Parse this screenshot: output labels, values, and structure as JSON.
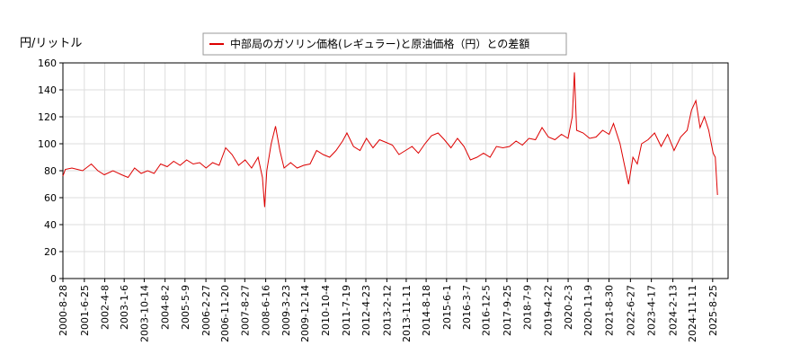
{
  "chart_data": {
    "type": "line",
    "y_label": "円/リットル",
    "legend": "top",
    "grid": true,
    "series": [
      {
        "name": "中部局のガソリン価格(レギュラー)と原油価格（円）との差額",
        "color": "#dd0000",
        "x": [
          "2000-8-28",
          "2000-10-1",
          "2001-1-1",
          "2001-6-1",
          "2001-10-1",
          "2002-1-1",
          "2002-4-1",
          "2002-8-1",
          "2002-12-1",
          "2003-3-1",
          "2003-6-1",
          "2003-9-1",
          "2003-12-1",
          "2004-3-1",
          "2004-6-1",
          "2004-9-1",
          "2004-12-1",
          "2005-3-1",
          "2005-6-1",
          "2005-9-1",
          "2005-12-1",
          "2006-3-1",
          "2006-6-1",
          "2006-9-1",
          "2006-12-1",
          "2007-3-1",
          "2007-6-1",
          "2007-9-1",
          "2007-12-1",
          "2008-3-1",
          "2008-5-1",
          "2008-6-1",
          "2008-7-1",
          "2008-9-1",
          "2008-11-1",
          "2009-1-1",
          "2009-3-1",
          "2009-6-1",
          "2009-9-1",
          "2009-12-1",
          "2010-3-1",
          "2010-6-1",
          "2010-9-1",
          "2010-12-1",
          "2011-3-1",
          "2011-6-1",
          "2011-8-1",
          "2011-11-1",
          "2012-2-1",
          "2012-5-1",
          "2012-8-1",
          "2012-11-1",
          "2013-2-1",
          "2013-5-1",
          "2013-8-1",
          "2013-11-1",
          "2014-2-1",
          "2014-5-1",
          "2014-8-1",
          "2014-11-1",
          "2015-2-1",
          "2015-5-1",
          "2015-8-1",
          "2015-11-1",
          "2016-2-1",
          "2016-5-1",
          "2016-8-1",
          "2016-11-1",
          "2017-2-1",
          "2017-5-1",
          "2017-8-1",
          "2017-11-1",
          "2018-2-1",
          "2018-5-1",
          "2018-8-1",
          "2018-11-1",
          "2019-2-1",
          "2019-5-1",
          "2019-8-1",
          "2019-11-1",
          "2020-2-1",
          "2020-4-1",
          "2020-5-1",
          "2020-6-1",
          "2020-9-1",
          "2020-12-1",
          "2021-3-1",
          "2021-6-1",
          "2021-9-1",
          "2021-11-1",
          "2022-2-1",
          "2022-4-1",
          "2022-6-1",
          "2022-8-1",
          "2022-10-1",
          "2022-12-1",
          "2023-3-1",
          "2023-6-1",
          "2023-9-1",
          "2023-12-1",
          "2024-3-1",
          "2024-6-1",
          "2024-9-1",
          "2024-11-1",
          "2025-1-1",
          "2025-3-1",
          "2025-5-1",
          "2025-7-1",
          "2025-9-1",
          "2025-10-1",
          "2025-11-1"
        ],
        "values": [
          76,
          81,
          82,
          80,
          85,
          80,
          77,
          80,
          77,
          75,
          82,
          78,
          80,
          78,
          85,
          83,
          87,
          84,
          88,
          85,
          86,
          82,
          86,
          84,
          97,
          92,
          84,
          88,
          82,
          90,
          75,
          53,
          80,
          100,
          113,
          95,
          82,
          86,
          82,
          84,
          85,
          95,
          92,
          90,
          95,
          102,
          108,
          98,
          95,
          104,
          97,
          103,
          101,
          99,
          92,
          95,
          98,
          93,
          100,
          106,
          108,
          103,
          97,
          104,
          98,
          88,
          90,
          93,
          90,
          98,
          97,
          98,
          102,
          99,
          104,
          103,
          112,
          105,
          103,
          107,
          104,
          120,
          153,
          110,
          108,
          104,
          105,
          110,
          107,
          115,
          100,
          85,
          70,
          90,
          85,
          100,
          103,
          108,
          98,
          107,
          95,
          105,
          110,
          125,
          132,
          112,
          120,
          110,
          93,
          90,
          62
        ]
      }
    ],
    "xlim": [
      "2000-8-28",
      "2026-3-30"
    ],
    "xticks": [
      "2000-8-28",
      "2001-6-25",
      "2002-4-8",
      "2003-1-6",
      "2003-10-14",
      "2004-8-2",
      "2005-5-9",
      "2006-2-27",
      "2006-11-20",
      "2007-8-27",
      "2008-6-16",
      "2009-3-23",
      "2009-12-14",
      "2010-10-4",
      "2011-7-19",
      "2012-4-23",
      "2013-2-12",
      "2013-11-11",
      "2014-8-18",
      "2015-6-1",
      "2016-3-7",
      "2016-12-5",
      "2017-9-25",
      "2018-7-9",
      "2019-4-22",
      "2020-2-3",
      "2020-11-9",
      "2021-8-30",
      "2022-6-27",
      "2023-4-17",
      "2024-2-13",
      "2024-11-11",
      "2025-8-25"
    ],
    "ylim": [
      0,
      160
    ],
    "yticks": [
      0,
      20,
      40,
      60,
      80,
      100,
      120,
      140,
      160
    ]
  }
}
